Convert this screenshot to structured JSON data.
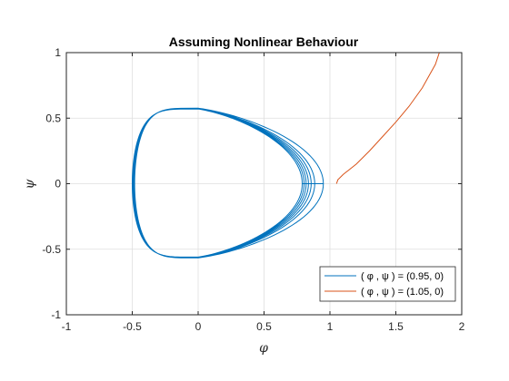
{
  "chart_data": {
    "type": "line",
    "title": "Assuming Nonlinear Behaviour",
    "xlabel": "φ",
    "ylabel": "ψ",
    "xlim": [
      -1,
      2
    ],
    "ylim": [
      -1,
      1
    ],
    "xticks": [
      -1,
      -0.5,
      0,
      0.5,
      1,
      1.5,
      2
    ],
    "yticks": [
      -1,
      -0.5,
      0,
      0.5,
      1
    ],
    "xtick_labels": [
      "-1",
      "-0.5",
      "0",
      "0.5",
      "1",
      "1.5",
      "2"
    ],
    "ytick_labels": [
      "-1",
      "-0.5",
      "0",
      "0.5",
      "1"
    ],
    "grid": true,
    "legend_position": "bottom-right",
    "series": [
      {
        "name": "( φ , ψ ) = (0.95, 0)",
        "color": "#0072bd",
        "kind": "spiral-orbit",
        "x": [
          0.95,
          0.9,
          0.8,
          0.6,
          0.4,
          0.2,
          0.0,
          -0.2,
          -0.4,
          -0.5,
          -0.4,
          -0.2,
          0.0,
          0.2,
          0.4,
          0.6,
          0.8,
          0.9,
          0.95
        ],
        "y": [
          0.0,
          0.16,
          0.3,
          0.44,
          0.52,
          0.56,
          0.57,
          0.54,
          0.4,
          0.0,
          -0.4,
          -0.53,
          -0.56,
          -0.55,
          -0.49,
          -0.39,
          -0.27,
          -0.13,
          0.0
        ],
        "start": [
          0.95,
          0.0
        ],
        "outer_right_x": 0.95,
        "inner_right_x": 0.79,
        "left_x": -0.5,
        "top_y": 0.57,
        "bottom_y": -0.56
      },
      {
        "name": "( φ , ψ ) = (1.05, 0)",
        "color": "#d95319",
        "kind": "escape",
        "x": [
          1.05,
          1.06,
          1.1,
          1.2,
          1.3,
          1.4,
          1.5,
          1.6,
          1.7,
          1.8,
          1.83
        ],
        "y": [
          0.0,
          0.03,
          0.07,
          0.15,
          0.25,
          0.36,
          0.47,
          0.59,
          0.73,
          0.91,
          1.0
        ]
      }
    ]
  }
}
